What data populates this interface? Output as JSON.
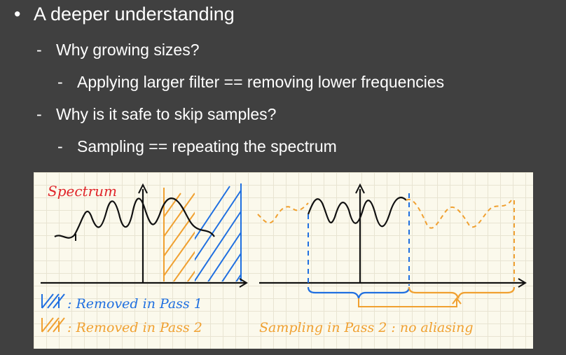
{
  "bullets": {
    "b1": {
      "marker": "•",
      "text": "A deeper understanding"
    },
    "b2": {
      "marker": "-",
      "text": "Why growing sizes?"
    },
    "b3": {
      "marker": "-",
      "text": "Applying larger filter == removing lower frequencies"
    },
    "b4": {
      "marker": "-",
      "text": "Why is it safe to skip samples?"
    },
    "b5": {
      "marker": "-",
      "text": "Sampling == repeating the spectrum"
    }
  },
  "figure": {
    "spectrum_label": "Spectrum",
    "legend_blue": ": Removed in Pass 1",
    "legend_orange": ": Removed in Pass 2",
    "caption_right": "Sampling in Pass 2 : no aliasing",
    "colors": {
      "red": "#e0262b",
      "blue": "#1f6fe0",
      "orange": "#f0a030",
      "ink": "#111111",
      "paper": "#fbf9ec"
    }
  }
}
